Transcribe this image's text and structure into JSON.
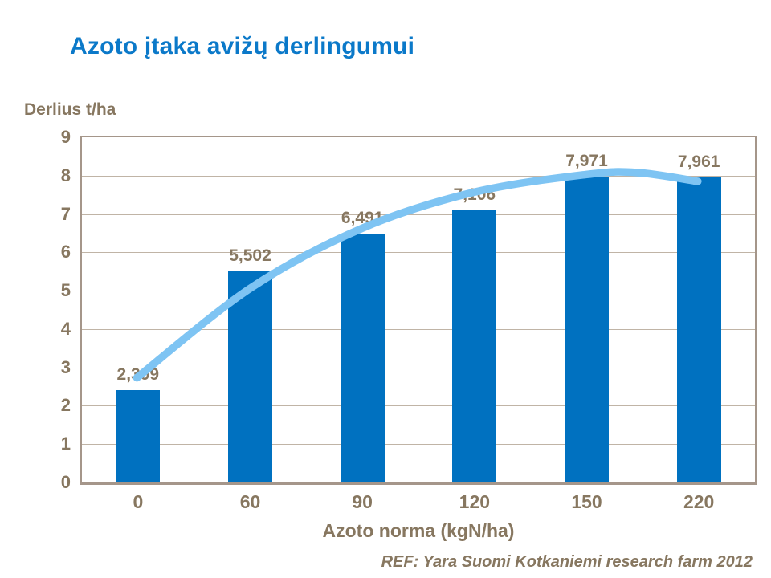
{
  "chart_data": {
    "type": "bar",
    "title": "Azoto įtaka avižų derlingumui",
    "ylabel": "Derlius t/ha",
    "xlabel": "Azoto norma (kgN/ha)",
    "footnote": "REF: Yara Suomi Kotkaniemi research farm 2012",
    "categories": [
      "0",
      "60",
      "90",
      "120",
      "150",
      "220"
    ],
    "values": [
      2.399,
      5.502,
      6.491,
      7.106,
      7.971,
      7.961
    ],
    "value_labels": [
      "2,399",
      "5,502",
      "6,491",
      "7,106",
      "7,971",
      "7,961"
    ],
    "ylim": [
      0,
      9
    ],
    "yticks": [
      0,
      1,
      2,
      3,
      4,
      5,
      6,
      7,
      8,
      9
    ],
    "grid": true,
    "legend": false,
    "trendline": {
      "type": "smooth-polynomial",
      "x_slot": [
        0.49,
        1.5,
        2.5,
        3.5,
        4.5,
        4.95,
        5.49
      ],
      "y_value": [
        2.73,
        5.06,
        6.63,
        7.57,
        8.03,
        8.08,
        7.85
      ]
    },
    "colors": {
      "bar": "#0071C0",
      "trend": "#7EC4F3",
      "title": "#0B79C9",
      "axis_text": "#877760",
      "gridline": "#C0B4A6",
      "plot_border": "#A5968A"
    }
  }
}
